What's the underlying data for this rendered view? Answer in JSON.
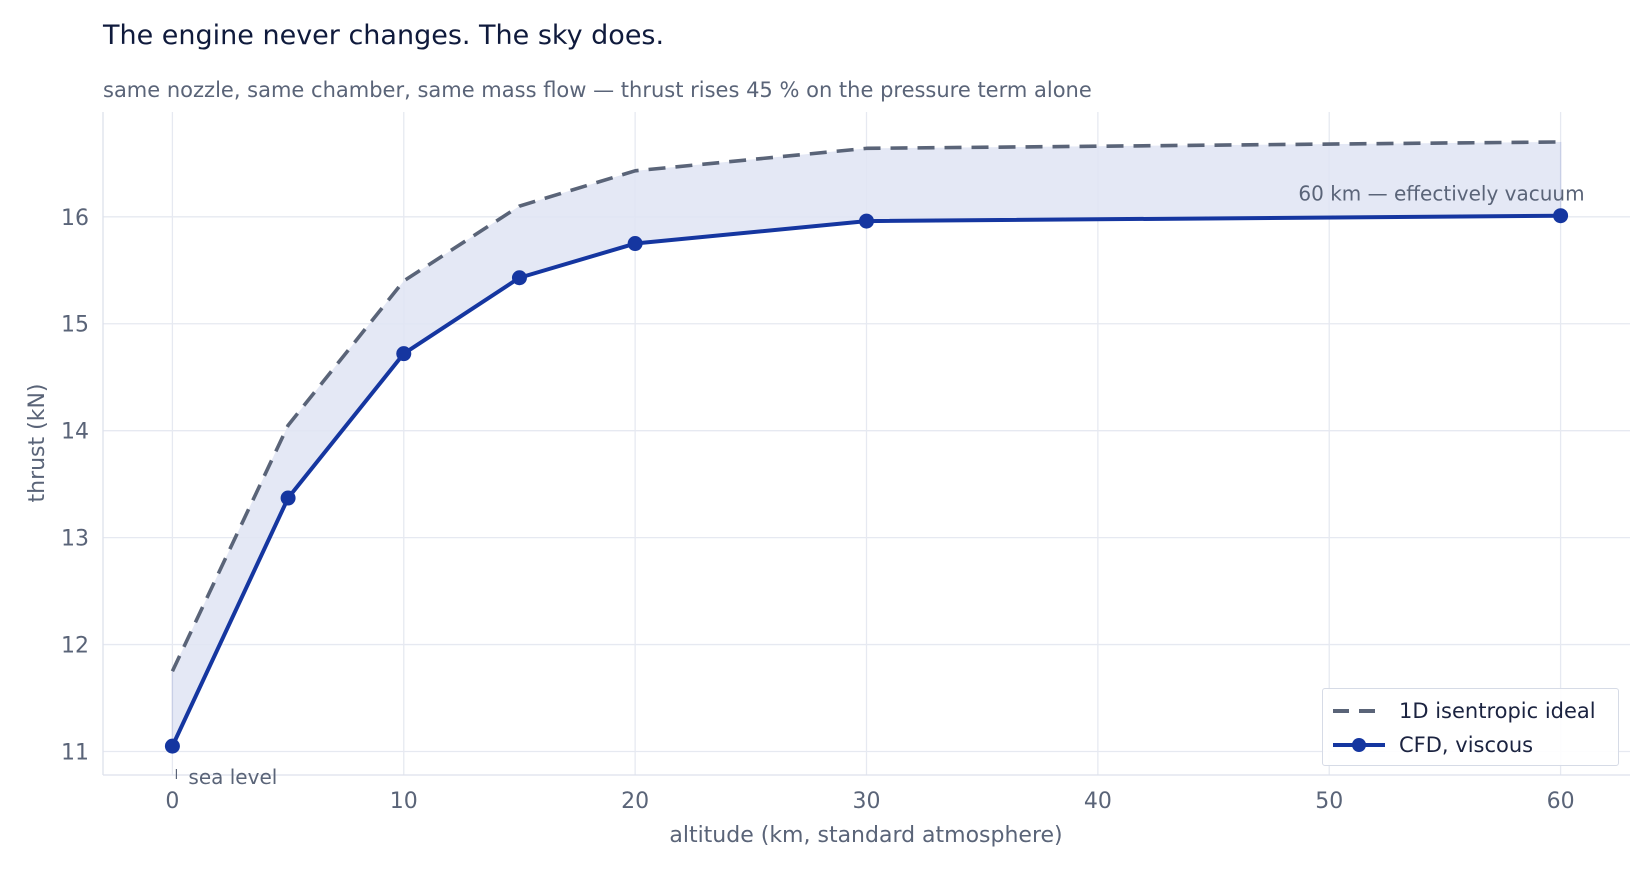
{
  "title": "The engine never changes. The sky does.",
  "subtitle": "same nozzle, same chamber, same mass flow — thrust rises 45 % on the pressure term alone",
  "colors": {
    "ideal": "#5a6478",
    "cfd": "#1536a0",
    "band": "#dfe4f3",
    "grid": "#e6e9f1",
    "axis_text": "#5a6478"
  },
  "chart_data": {
    "type": "line",
    "xlabel": "altitude  (km, standard atmosphere)",
    "ylabel": "thrust  (kN)",
    "xlim": [
      -3,
      63
    ],
    "ylim": [
      10.78,
      16.98
    ],
    "xticks": [
      0,
      10,
      20,
      30,
      40,
      50,
      60
    ],
    "yticks": [
      11,
      12,
      13,
      14,
      15,
      16
    ],
    "grid": true,
    "legend_position": "lower-right",
    "series": [
      {
        "name": "1D isentropic ideal",
        "style": "dashed",
        "x": [
          0,
          5,
          10,
          15,
          20,
          30,
          60
        ],
        "y": [
          11.75,
          14.05,
          15.4,
          16.1,
          16.43,
          16.64,
          16.7
        ]
      },
      {
        "name": "CFD, viscous",
        "style": "solid-markers",
        "x": [
          0,
          5,
          10,
          15,
          20,
          30,
          60
        ],
        "y": [
          11.05,
          13.37,
          14.72,
          15.43,
          15.75,
          15.96,
          16.01
        ]
      }
    ],
    "annotations": [
      {
        "text": "sea level",
        "x": 0,
        "y": 10.78
      },
      {
        "text": "60 km — effectively vacuum",
        "x": 60,
        "y": 16.22
      }
    ]
  }
}
